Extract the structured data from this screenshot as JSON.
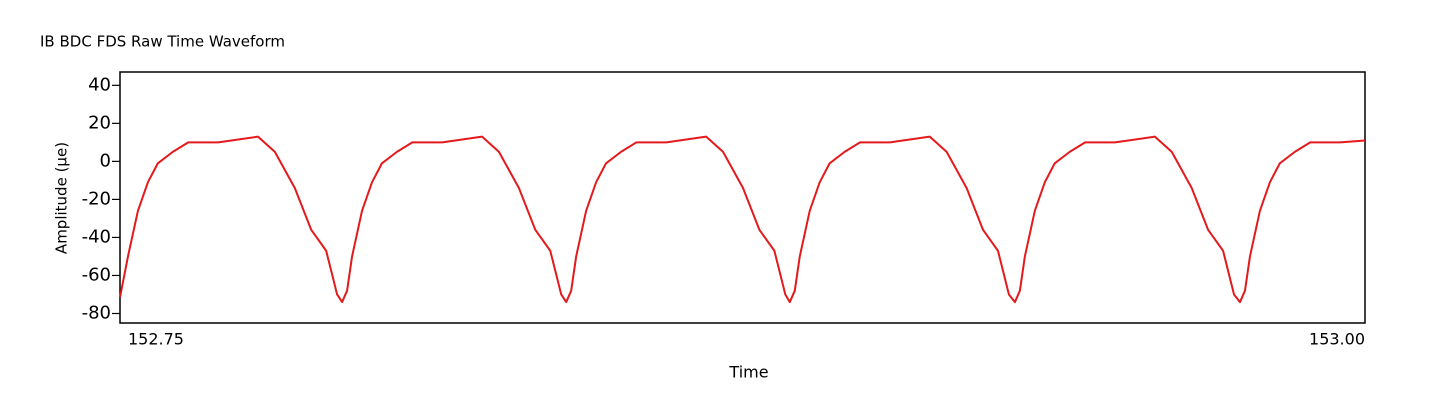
{
  "chart_data": {
    "type": "line",
    "title": "IB BDC FDS Raw Time Waveform",
    "x_label": "Time",
    "y_label": "Amplitude (µe)",
    "color": "#e31a1c",
    "xlim": [
      152.75,
      153.0
    ],
    "xticks": [
      152.75,
      {
        "value": 153.0,
        "label": "153.00"
      }
    ],
    "ylim": [
      -85,
      47
    ],
    "yticks": [
      40,
      20,
      0,
      -20,
      -40,
      -60,
      -80
    ],
    "grid": false,
    "x": [
      152.75,
      152.7516,
      152.7536,
      152.7556,
      152.7576,
      152.7606,
      152.7637,
      152.7697,
      152.7777,
      152.7811,
      152.7851,
      152.7884,
      152.7914,
      152.7936,
      152.7946,
      152.7956,
      152.7966,
      152.7986,
      152.8006,
      152.8026,
      152.8056,
      152.8087,
      152.8147,
      152.8227,
      152.8261,
      152.8301,
      152.8334,
      152.8364,
      152.8386,
      152.8396,
      152.8406,
      152.8416,
      152.8436,
      152.8456,
      152.8476,
      152.8506,
      152.8537,
      152.8597,
      152.8677,
      152.8711,
      152.8751,
      152.8784,
      152.8814,
      152.8836,
      152.8845,
      152.8855,
      152.8865,
      152.8885,
      152.8905,
      152.8925,
      152.8955,
      152.8986,
      152.9046,
      152.9126,
      152.916,
      152.92,
      152.9233,
      152.9263,
      152.9285,
      152.9297,
      152.9307,
      152.9317,
      152.9337,
      152.9357,
      152.9377,
      152.9407,
      152.9438,
      152.9498,
      152.9578,
      152.9612,
      152.9652,
      152.9685,
      152.9715,
      152.9737,
      152.9749,
      152.9759,
      152.9769,
      152.9789,
      152.9809,
      152.9829,
      152.9859,
      152.989,
      152.995,
      153.0
    ],
    "values": [
      -71.5,
      -50,
      -26,
      -11,
      -1,
      5,
      10,
      10,
      13,
      5,
      -14,
      -36,
      -47,
      -70,
      -74,
      -68,
      -50,
      -26,
      -11,
      -1,
      5,
      10,
      10,
      13,
      5,
      -14,
      -36,
      -47,
      -70,
      -74,
      -68,
      -50,
      -26,
      -11,
      -1,
      5,
      10,
      10,
      13,
      5,
      -14,
      -36,
      -47,
      -70,
      -74,
      -68,
      -50,
      -26,
      -11,
      -1,
      5,
      10,
      10,
      13,
      5,
      -14,
      -36,
      -47,
      -70,
      -74,
      -68,
      -50,
      -26,
      -11,
      -1,
      5,
      10,
      10,
      13,
      5,
      -14,
      -36,
      -47,
      -70,
      -74,
      -68,
      -50,
      -26,
      -11,
      -1,
      5,
      10,
      10,
      11
    ]
  }
}
